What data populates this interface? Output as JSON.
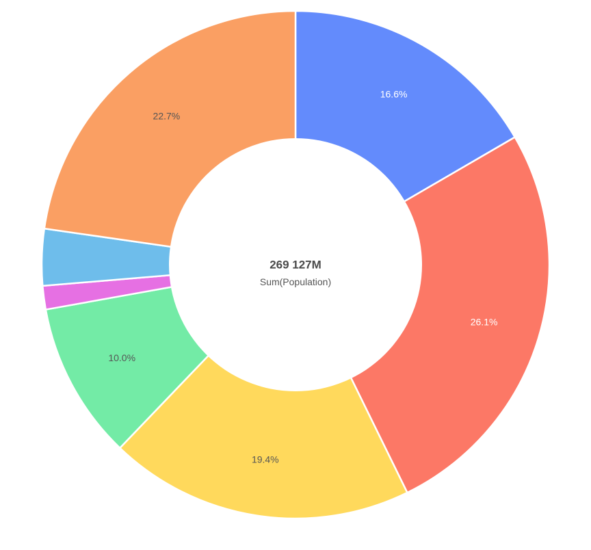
{
  "chart_data": {
    "type": "pie",
    "variant": "donut",
    "center": {
      "value": "269 127M",
      "caption": "Sum(Population)"
    },
    "slices": [
      {
        "value": 16.6,
        "label": "16.6%",
        "color": "#638bfc",
        "label_color": "#ffffff"
      },
      {
        "value": 26.1,
        "label": "26.1%",
        "color": "#fc7866",
        "label_color": "#ffffff"
      },
      {
        "value": 19.4,
        "label": "19.4%",
        "color": "#ffd95c",
        "label_color": "#555555"
      },
      {
        "value": 10.0,
        "label": "10.0%",
        "color": "#73eba6",
        "label_color": "#555555"
      },
      {
        "value": 1.5,
        "label": "",
        "color": "#e670e3",
        "label_color": "#555555"
      },
      {
        "value": 3.6,
        "label": "",
        "color": "#6ebdeb",
        "label_color": "#555555"
      },
      {
        "value": 22.7,
        "label": "22.7%",
        "color": "#fa9f63",
        "label_color": "#555555"
      }
    ],
    "legend": "none",
    "grid": false
  }
}
